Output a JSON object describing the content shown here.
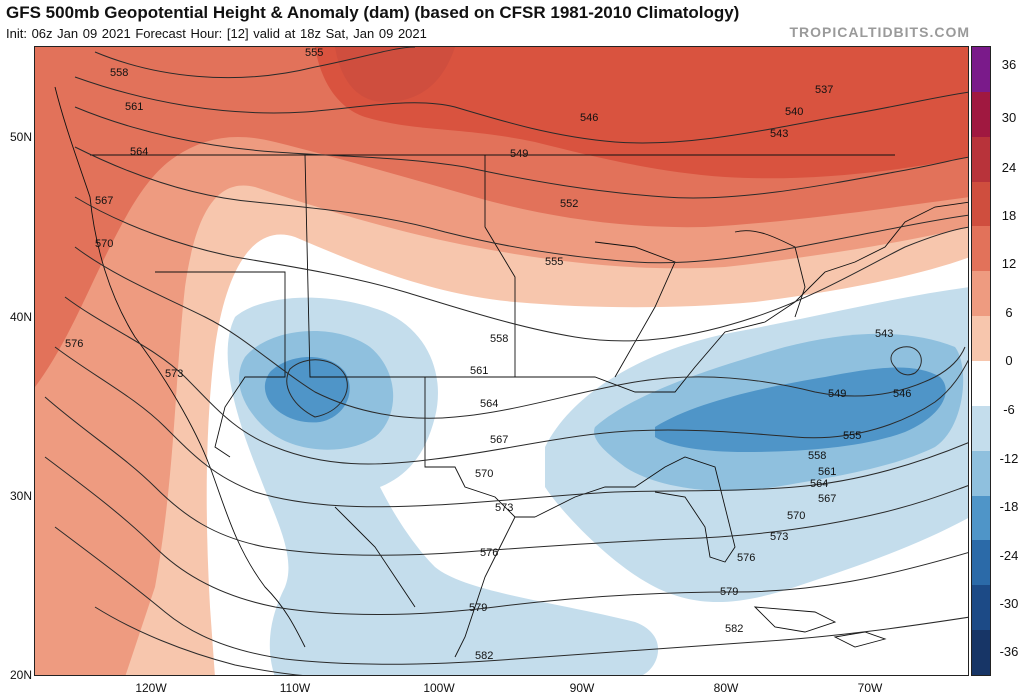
{
  "header": {
    "title": "GFS 500mb Geopotential Height & Anomaly (dam) (based on CFSR 1981-2010 Climatology)",
    "subtitle": "Init: 06z Jan 09 2021   Forecast Hour: [12]   valid at 18z Sat, Jan 09 2021",
    "credit": "TROPICALTIDBITS.COM"
  },
  "axes": {
    "lat_labels": [
      "50N",
      "40N",
      "30N",
      "20N"
    ],
    "lon_labels": [
      "120W",
      "110W",
      "100W",
      "90W",
      "80W",
      "70W"
    ]
  },
  "colorbar": {
    "labels": [
      "36",
      "30",
      "24",
      "18",
      "12",
      "6",
      "0",
      "-6",
      "-12",
      "-18",
      "-24",
      "-30",
      "-36"
    ],
    "colors": [
      "#7a1a8a",
      "#a01840",
      "#b8333a",
      "#cf4e3e",
      "#e2725a",
      "#ee9b80",
      "#f7c6ad",
      "#ffffff",
      "#c4ddec",
      "#8fc0de",
      "#4f95c8",
      "#2b6aa8",
      "#1c4a86",
      "#173566"
    ]
  },
  "contours": {
    "heights": [
      "537",
      "540",
      "543",
      "546",
      "549",
      "552",
      "555",
      "558",
      "561",
      "564",
      "567",
      "570",
      "573",
      "576",
      "579",
      "582"
    ]
  },
  "colors": {
    "positive_strong": "#d9533f",
    "positive_mid": "#ee9b80",
    "positive_weak": "#f7c6ad",
    "negative_weak": "#c4ddec",
    "negative_mid": "#8fc0de",
    "negative_strong": "#4f95c8"
  }
}
